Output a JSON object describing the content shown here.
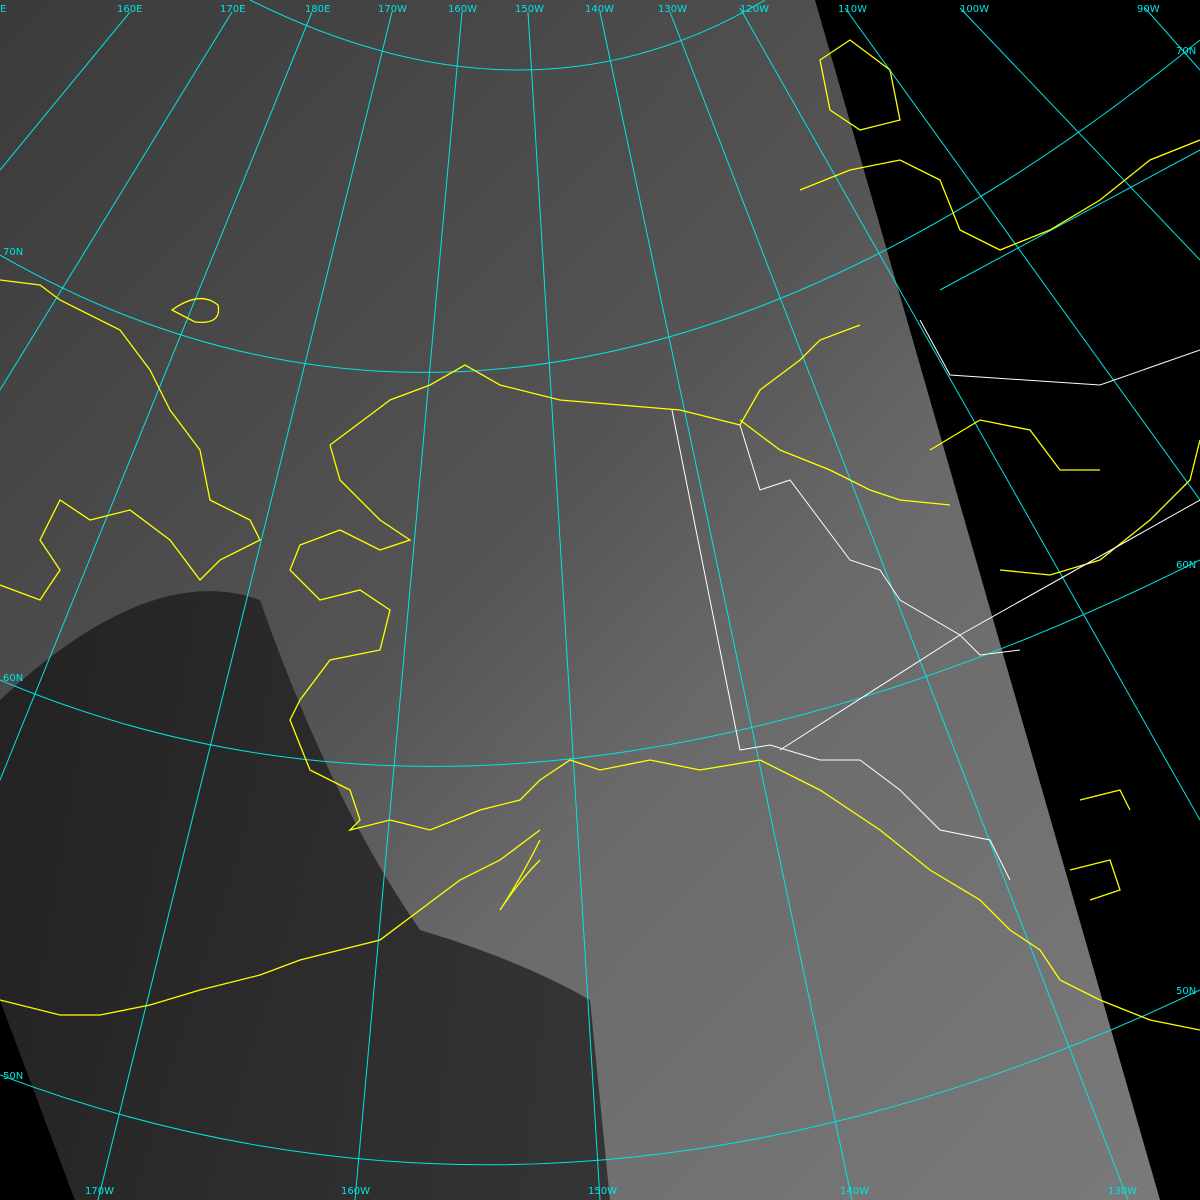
{
  "colors": {
    "graticule": "#00e5e5",
    "coastline": "#ffff00",
    "boundary": "#ffffff",
    "background": "#000000"
  },
  "top_labels": [
    "E",
    "160E",
    "170E",
    "180E",
    "170W",
    "160W",
    "150W",
    "140W",
    "130W",
    "120W",
    "110W",
    "100W",
    "90W"
  ],
  "bottom_labels": [
    "170W",
    "160W",
    "150W",
    "140W",
    "130W"
  ],
  "left_labels": [
    "70N",
    "60N",
    "50N"
  ],
  "right_labels": [
    "70N",
    "60N",
    "50N"
  ]
}
